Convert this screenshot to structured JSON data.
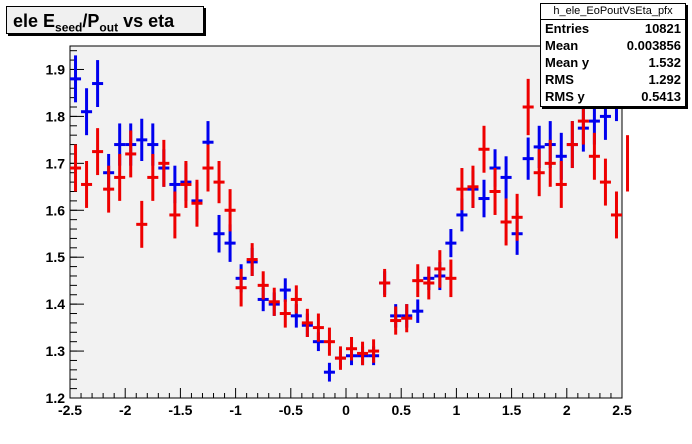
{
  "title": {
    "main": "ele E",
    "sub1": "seed",
    "mid": "/P",
    "sub2": "out",
    "tail": " vs eta"
  },
  "stats": {
    "name": "h_ele_EoPoutVsEta_pfx",
    "rows": [
      {
        "label": "Entries",
        "value": "10821"
      },
      {
        "label": "Mean",
        "value": "0.003856"
      },
      {
        "label": "Mean y",
        "value": "1.532"
      },
      {
        "label": "RMS",
        "value": "1.292"
      },
      {
        "label": "RMS y",
        "value": "0.5413"
      }
    ]
  },
  "chart_data": {
    "type": "scatter",
    "title": "ele Eseed/Pout vs eta",
    "xlabel": "",
    "ylabel": "",
    "xlim": [
      -2.5,
      2.5
    ],
    "ylim": [
      1.2,
      1.95
    ],
    "xticks": [
      "-2.5",
      "-2",
      "-1.5",
      "-1",
      "-0.5",
      "0",
      "0.5",
      "1",
      "1.5",
      "2",
      "2.5"
    ],
    "yticks": [
      "1.2",
      "1.3",
      "1.4",
      "1.5",
      "1.6",
      "1.7",
      "1.8",
      "1.9"
    ],
    "grid": false,
    "colors": {
      "blue": "#0000ee",
      "red": "#ee0000",
      "frame_fill": "#f2f2f2"
    },
    "series": [
      {
        "color": "blue",
        "points": [
          {
            "x": -2.45,
            "y": 1.88,
            "err": 0.05
          },
          {
            "x": -2.35,
            "y": 1.81,
            "err": 0.05
          },
          {
            "x": -2.25,
            "y": 1.87,
            "err": 0.05
          },
          {
            "x": -2.15,
            "y": 1.68,
            "err": 0.04
          },
          {
            "x": -2.05,
            "y": 1.74,
            "err": 0.045
          },
          {
            "x": -1.95,
            "y": 1.74,
            "err": 0.045
          },
          {
            "x": -1.85,
            "y": 1.75,
            "err": 0.045
          },
          {
            "x": -1.75,
            "y": 1.74,
            "err": 0.045
          },
          {
            "x": -1.65,
            "y": 1.69,
            "err": 0.04
          },
          {
            "x": -1.55,
            "y": 1.655,
            "err": 0.04
          },
          {
            "x": -1.45,
            "y": 1.66,
            "err": 0.04
          },
          {
            "x": -1.35,
            "y": 1.62,
            "err": 0.04
          },
          {
            "x": -1.25,
            "y": 1.745,
            "err": 0.045
          },
          {
            "x": -1.15,
            "y": 1.55,
            "err": 0.04
          },
          {
            "x": -1.05,
            "y": 1.53,
            "err": 0.04
          },
          {
            "x": -0.95,
            "y": 1.455,
            "err": 0.03
          },
          {
            "x": -0.85,
            "y": 1.49,
            "err": 0.03
          },
          {
            "x": -0.75,
            "y": 1.41,
            "err": 0.025
          },
          {
            "x": -0.65,
            "y": 1.4,
            "err": 0.025
          },
          {
            "x": -0.55,
            "y": 1.43,
            "err": 0.025
          },
          {
            "x": -0.45,
            "y": 1.375,
            "err": 0.025
          },
          {
            "x": -0.35,
            "y": 1.355,
            "err": 0.025
          },
          {
            "x": -0.25,
            "y": 1.32,
            "err": 0.02
          },
          {
            "x": -0.15,
            "y": 1.255,
            "err": 0.02
          },
          {
            "x": -0.05,
            "y": 1.285,
            "err": 0.02
          },
          {
            "x": 0.05,
            "y": 1.29,
            "err": 0.02
          },
          {
            "x": 0.15,
            "y": 1.29,
            "err": 0.02
          },
          {
            "x": 0.25,
            "y": 1.29,
            "err": 0.02
          },
          {
            "x": 0.35,
            "y": 1.445,
            "err": 0.025
          },
          {
            "x": 0.45,
            "y": 1.375,
            "err": 0.025
          },
          {
            "x": 0.55,
            "y": 1.375,
            "err": 0.025
          },
          {
            "x": 0.65,
            "y": 1.385,
            "err": 0.025
          },
          {
            "x": 0.75,
            "y": 1.455,
            "err": 0.025
          },
          {
            "x": 0.85,
            "y": 1.46,
            "err": 0.03
          },
          {
            "x": 0.95,
            "y": 1.53,
            "err": 0.03
          },
          {
            "x": 1.05,
            "y": 1.59,
            "err": 0.035
          },
          {
            "x": 1.15,
            "y": 1.645,
            "err": 0.04
          },
          {
            "x": 1.25,
            "y": 1.625,
            "err": 0.04
          },
          {
            "x": 1.35,
            "y": 1.69,
            "err": 0.04
          },
          {
            "x": 1.45,
            "y": 1.67,
            "err": 0.045
          },
          {
            "x": 1.55,
            "y": 1.55,
            "err": 0.045
          },
          {
            "x": 1.65,
            "y": 1.71,
            "err": 0.045
          },
          {
            "x": 1.75,
            "y": 1.735,
            "err": 0.045
          },
          {
            "x": 1.85,
            "y": 1.74,
            "err": 0.05
          },
          {
            "x": 1.95,
            "y": 1.715,
            "err": 0.05
          },
          {
            "x": 2.05,
            "y": 1.74,
            "err": 0.05
          },
          {
            "x": 2.15,
            "y": 1.775,
            "err": 0.05
          },
          {
            "x": 2.25,
            "y": 1.79,
            "err": 0.05
          },
          {
            "x": 2.35,
            "y": 1.8,
            "err": 0.05
          },
          {
            "x": 2.45,
            "y": 1.84,
            "err": 0.05
          }
        ]
      },
      {
        "color": "red",
        "points": [
          {
            "x": -2.45,
            "y": 1.69,
            "err": 0.05
          },
          {
            "x": -2.35,
            "y": 1.655,
            "err": 0.05
          },
          {
            "x": -2.25,
            "y": 1.725,
            "err": 0.05
          },
          {
            "x": -2.15,
            "y": 1.645,
            "err": 0.05
          },
          {
            "x": -2.05,
            "y": 1.67,
            "err": 0.05
          },
          {
            "x": -1.95,
            "y": 1.72,
            "err": 0.05
          },
          {
            "x": -1.85,
            "y": 1.57,
            "err": 0.05
          },
          {
            "x": -1.75,
            "y": 1.67,
            "err": 0.05
          },
          {
            "x": -1.65,
            "y": 1.7,
            "err": 0.05
          },
          {
            "x": -1.55,
            "y": 1.59,
            "err": 0.05
          },
          {
            "x": -1.45,
            "y": 1.655,
            "err": 0.05
          },
          {
            "x": -1.35,
            "y": 1.615,
            "err": 0.05
          },
          {
            "x": -1.25,
            "y": 1.69,
            "err": 0.05
          },
          {
            "x": -1.15,
            "y": 1.66,
            "err": 0.045
          },
          {
            "x": -1.05,
            "y": 1.6,
            "err": 0.045
          },
          {
            "x": -0.95,
            "y": 1.435,
            "err": 0.04
          },
          {
            "x": -0.85,
            "y": 1.495,
            "err": 0.035
          },
          {
            "x": -0.75,
            "y": 1.44,
            "err": 0.03
          },
          {
            "x": -0.65,
            "y": 1.405,
            "err": 0.03
          },
          {
            "x": -0.55,
            "y": 1.38,
            "err": 0.03
          },
          {
            "x": -0.45,
            "y": 1.41,
            "err": 0.03
          },
          {
            "x": -0.35,
            "y": 1.36,
            "err": 0.03
          },
          {
            "x": -0.25,
            "y": 1.35,
            "err": 0.03
          },
          {
            "x": -0.15,
            "y": 1.32,
            "err": 0.03
          },
          {
            "x": -0.05,
            "y": 1.285,
            "err": 0.025
          },
          {
            "x": 0.05,
            "y": 1.305,
            "err": 0.025
          },
          {
            "x": 0.15,
            "y": 1.295,
            "err": 0.025
          },
          {
            "x": 0.25,
            "y": 1.3,
            "err": 0.025
          },
          {
            "x": 0.35,
            "y": 1.445,
            "err": 0.03
          },
          {
            "x": 0.45,
            "y": 1.365,
            "err": 0.03
          },
          {
            "x": 0.55,
            "y": 1.37,
            "err": 0.03
          },
          {
            "x": 0.65,
            "y": 1.45,
            "err": 0.035
          },
          {
            "x": 0.75,
            "y": 1.445,
            "err": 0.035
          },
          {
            "x": 0.85,
            "y": 1.475,
            "err": 0.04
          },
          {
            "x": 0.95,
            "y": 1.455,
            "err": 0.04
          },
          {
            "x": 1.05,
            "y": 1.645,
            "err": 0.045
          },
          {
            "x": 1.15,
            "y": 1.65,
            "err": 0.045
          },
          {
            "x": 1.25,
            "y": 1.73,
            "err": 0.05
          },
          {
            "x": 1.35,
            "y": 1.64,
            "err": 0.05
          },
          {
            "x": 1.45,
            "y": 1.575,
            "err": 0.05
          },
          {
            "x": 1.55,
            "y": 1.585,
            "err": 0.05
          },
          {
            "x": 1.65,
            "y": 1.82,
            "err": 0.06
          },
          {
            "x": 1.75,
            "y": 1.68,
            "err": 0.05
          },
          {
            "x": 1.85,
            "y": 1.7,
            "err": 0.05
          },
          {
            "x": 1.95,
            "y": 1.655,
            "err": 0.05
          },
          {
            "x": 2.05,
            "y": 1.74,
            "err": 0.05
          },
          {
            "x": 2.15,
            "y": 1.79,
            "err": 0.05
          },
          {
            "x": 2.25,
            "y": 1.715,
            "err": 0.05
          },
          {
            "x": 2.35,
            "y": 1.66,
            "err": 0.05
          },
          {
            "x": 2.45,
            "y": 1.59,
            "err": 0.05
          },
          {
            "x": 2.55,
            "y": 1.7,
            "err": 0.06
          }
        ]
      }
    ]
  }
}
